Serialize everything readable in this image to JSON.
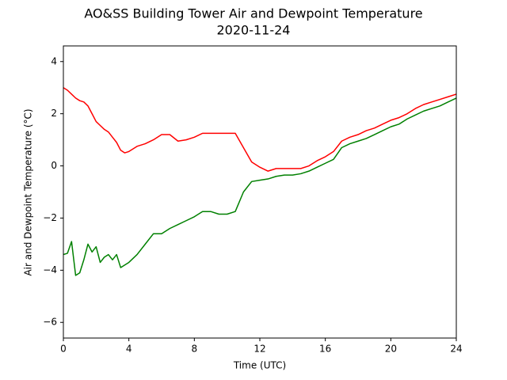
{
  "chart_data": {
    "type": "line",
    "title": "AO&SS Building Tower Air and Dewpoint Temperature",
    "subtitle": "2020-11-24",
    "x_label": "Time (UTC)",
    "y_label": "Air and Dewpoint Temperature (°C)",
    "x": [
      0,
      0.25,
      0.5,
      0.75,
      1,
      1.25,
      1.5,
      1.75,
      2,
      2.25,
      2.5,
      2.75,
      3,
      3.25,
      3.5,
      3.75,
      4,
      4.5,
      5,
      5.5,
      6,
      6.5,
      7,
      7.5,
      8,
      8.5,
      9,
      9.5,
      10,
      10.5,
      11,
      11.5,
      12,
      12.5,
      13,
      13.5,
      14,
      14.5,
      15,
      15.5,
      16,
      16.5,
      17,
      17.5,
      18,
      18.5,
      19,
      19.5,
      20,
      20.5,
      21,
      21.5,
      22,
      22.5,
      23,
      23.5,
      24
    ],
    "series": [
      {
        "color": "#ff0000",
        "values": [
          3.0,
          2.9,
          2.75,
          2.6,
          2.5,
          2.45,
          2.3,
          2.0,
          1.7,
          1.55,
          1.4,
          1.3,
          1.1,
          0.9,
          0.6,
          0.5,
          0.55,
          0.75,
          0.85,
          1.0,
          1.2,
          1.2,
          0.95,
          1.0,
          1.1,
          1.25,
          1.25,
          1.25,
          1.25,
          1.25,
          0.7,
          0.15,
          -0.05,
          -0.2,
          -0.1,
          -0.1,
          -0.1,
          -0.1,
          0.0,
          0.2,
          0.35,
          0.55,
          0.95,
          1.1,
          1.2,
          1.35,
          1.45,
          1.6,
          1.75,
          1.85,
          2.0,
          2.2,
          2.35,
          2.45,
          2.55,
          2.65,
          2.75
        ]
      },
      {
        "color": "#008000",
        "values": [
          -3.4,
          -3.35,
          -2.9,
          -4.2,
          -4.1,
          -3.6,
          -3.0,
          -3.3,
          -3.1,
          -3.7,
          -3.5,
          -3.4,
          -3.6,
          -3.4,
          -3.9,
          -3.8,
          -3.7,
          -3.4,
          -3.0,
          -2.6,
          -2.6,
          -2.4,
          -2.25,
          -2.1,
          -1.95,
          -1.75,
          -1.75,
          -1.85,
          -1.85,
          -1.75,
          -1.0,
          -0.6,
          -0.55,
          -0.5,
          -0.4,
          -0.35,
          -0.35,
          -0.3,
          -0.2,
          -0.05,
          0.1,
          0.25,
          0.7,
          0.85,
          0.95,
          1.05,
          1.2,
          1.35,
          1.5,
          1.6,
          1.8,
          1.95,
          2.1,
          2.2,
          2.3,
          2.45,
          2.6
        ]
      }
    ],
    "xlim": [
      0,
      24
    ],
    "xticks": [
      0,
      4,
      8,
      12,
      16,
      20,
      24
    ],
    "ylim": [
      -6.6,
      4.6
    ],
    "yticks": [
      {
        "value": -6,
        "label": "−6"
      },
      {
        "value": -4,
        "label": "−4"
      },
      {
        "value": -2,
        "label": "−2"
      },
      0,
      2,
      4
    ],
    "grid": false
  }
}
